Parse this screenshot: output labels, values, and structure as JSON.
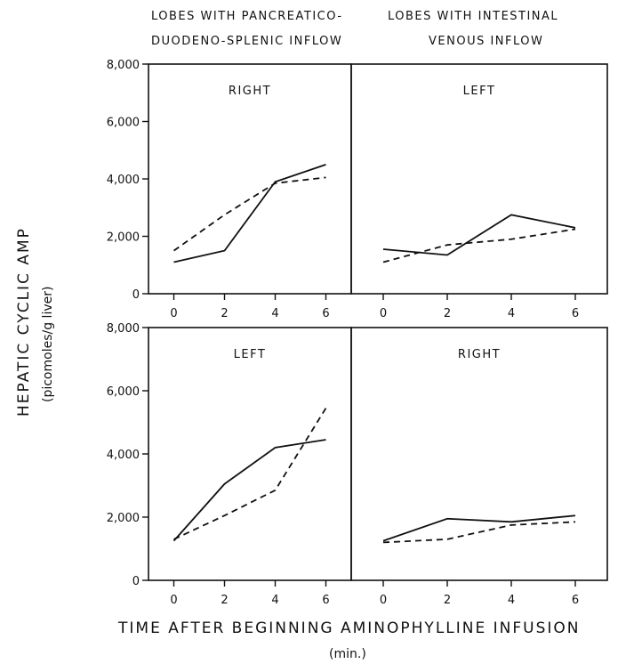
{
  "header": {
    "left_line1": "LOBES WITH PANCREATICO-",
    "left_line2": "DUODENO-SPLENIC INFLOW",
    "right_line1": "LOBES WITH INTESTINAL",
    "right_line2": "VENOUS INFLOW"
  },
  "y_axis": {
    "title": "HEPATIC CYCLIC AMP",
    "subtitle": "(picomoles/g liver)",
    "ticks": [
      "0",
      "2,000",
      "4,000",
      "6,000",
      "8,000"
    ]
  },
  "x_axis": {
    "title": "TIME AFTER BEGINNING AMINOPHYLLINE INFUSION",
    "subtitle": "(min.)",
    "ticks": [
      "0",
      "2",
      "4",
      "6"
    ]
  },
  "chart_data": [
    {
      "type": "line",
      "title": "RIGHT",
      "x": [
        0,
        2,
        4,
        6
      ],
      "xlim": [
        -1,
        7
      ],
      "ylim": [
        0,
        8000
      ],
      "series": [
        {
          "style": "solid",
          "values": [
            1100,
            1500,
            3900,
            4500
          ]
        },
        {
          "style": "dashed",
          "values": [
            1500,
            2750,
            3850,
            4050
          ]
        }
      ]
    },
    {
      "type": "line",
      "title": "LEFT",
      "x": [
        0,
        2,
        4,
        6
      ],
      "xlim": [
        -1,
        7
      ],
      "ylim": [
        0,
        8000
      ],
      "series": [
        {
          "style": "solid",
          "values": [
            1550,
            1350,
            2750,
            2300
          ]
        },
        {
          "style": "dashed",
          "values": [
            1100,
            1700,
            1900,
            2250
          ]
        }
      ]
    },
    {
      "type": "line",
      "title": "LEFT",
      "x": [
        0,
        2,
        4,
        6
      ],
      "xlim": [
        -1,
        7
      ],
      "ylim": [
        0,
        8000
      ],
      "series": [
        {
          "style": "solid",
          "values": [
            1250,
            3050,
            4200,
            4450
          ]
        },
        {
          "style": "dashed",
          "values": [
            1300,
            2050,
            2850,
            5450
          ]
        }
      ]
    },
    {
      "type": "line",
      "title": "RIGHT",
      "x": [
        0,
        2,
        4,
        6
      ],
      "xlim": [
        -1,
        7
      ],
      "ylim": [
        0,
        8000
      ],
      "series": [
        {
          "style": "solid",
          "values": [
            1250,
            1950,
            1850,
            2050
          ]
        },
        {
          "style": "dashed",
          "values": [
            1200,
            1300,
            1750,
            1850
          ]
        }
      ]
    }
  ]
}
